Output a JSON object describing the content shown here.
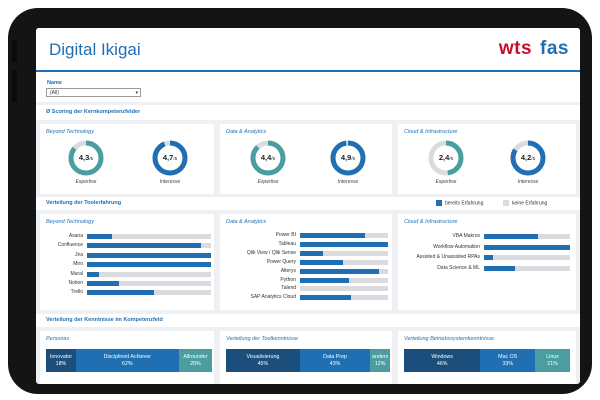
{
  "app": {
    "title": "Digital Ikigai"
  },
  "logo": {
    "part1": "wts",
    "part2": "fas"
  },
  "filter": {
    "label": "Name",
    "value": "(All)"
  },
  "sections": {
    "scoring": "Ø Scoring der Kernkompetenzfelder",
    "tools": "Verteilung der Toolerfahrung",
    "knowledge": "Verteilung der Kenntnisse im Kompetenzfeld"
  },
  "legend": {
    "has": "bereits Erfahrung",
    "none": "keine Erfahrung"
  },
  "colors": {
    "accent": "#1f6fb2",
    "teal": "#4a9ea1",
    "dark_navy": "#1b4e7a",
    "bar_bg": "#d9dbde",
    "logo_red": "#c8102e"
  },
  "scoring": [
    {
      "title": "Beyond Technology",
      "expertise": {
        "value": "4,3",
        "label": "Expertise",
        "fraction": 0.86
      },
      "interest": {
        "value": "4,7",
        "label": "Interesse",
        "fraction": 0.94
      }
    },
    {
      "title": "Data & Analytics",
      "expertise": {
        "value": "4,4",
        "label": "Expertise",
        "fraction": 0.88
      },
      "interest": {
        "value": "4,9",
        "label": "Interesse",
        "fraction": 0.98
      }
    },
    {
      "title": "Cloud & Infrastructure",
      "expertise": {
        "value": "2,4",
        "label": "Expertise",
        "fraction": 0.48
      },
      "interest": {
        "value": "4,2",
        "label": "Interesse",
        "fraction": 0.84
      }
    }
  ],
  "score_max": "/5",
  "tools": [
    {
      "title": "Beyond Technology",
      "items": [
        {
          "label": "Asana",
          "value": 0.2
        },
        {
          "label": "Confluence",
          "value": 0.92
        },
        {
          "label": "Jira",
          "value": 1.0
        },
        {
          "label": "Miro",
          "value": 1.0
        },
        {
          "label": "Mural",
          "value": 0.1
        },
        {
          "label": "Notion",
          "value": 0.26
        },
        {
          "label": "Trello",
          "value": 0.54
        }
      ]
    },
    {
      "title": "Data & Analytics",
      "items": [
        {
          "label": "Power BI",
          "value": 0.74
        },
        {
          "label": "Tableau",
          "value": 1.0
        },
        {
          "label": "Qlik View / Qlik Sense",
          "value": 0.26
        },
        {
          "label": "Power Query",
          "value": 0.49
        },
        {
          "label": "Alteryx",
          "value": 0.9
        },
        {
          "label": "Python",
          "value": 0.56
        },
        {
          "label": "Talend",
          "value": 0.0
        },
        {
          "label": "SAP Analytics Cloud",
          "value": 0.58
        }
      ]
    },
    {
      "title": "Cloud & Infrastructure",
      "items": [
        {
          "label": "VBA Makros",
          "value": 0.63
        },
        {
          "label": "Workflow Automation",
          "value": 1.0
        },
        {
          "label": "Assisted & Unassisted RPAs",
          "value": 0.1
        },
        {
          "label": "Data Science & ML",
          "value": 0.36
        }
      ]
    }
  ],
  "knowledge": [
    {
      "title": "Personas",
      "segments": [
        {
          "label": "Innovator",
          "pct": "18%",
          "share": 0.18,
          "color": "#1b4e7a"
        },
        {
          "label": "Disciplined Achiever",
          "pct": "62%",
          "share": 0.62,
          "color": "#1f6fb2"
        },
        {
          "label": "Allrounder",
          "pct": "20%",
          "share": 0.2,
          "color": "#4a9ea1"
        }
      ]
    },
    {
      "title": "Verteilung der Toolkenntnisse",
      "segments": [
        {
          "label": "Visualisierung",
          "pct": "45%",
          "share": 0.45,
          "color": "#1b4e7a"
        },
        {
          "label": "Data Prep",
          "pct": "43%",
          "share": 0.43,
          "color": "#1f6fb2"
        },
        {
          "label": "anders",
          "pct": "12%",
          "share": 0.12,
          "color": "#4a9ea1"
        }
      ]
    },
    {
      "title": "Verteilung Betriebssystemkenntnisse",
      "segments": [
        {
          "label": "Windows",
          "pct": "46%",
          "share": 0.46,
          "color": "#1b4e7a"
        },
        {
          "label": "Mac OS",
          "pct": "33%",
          "share": 0.33,
          "color": "#1f6fb2"
        },
        {
          "label": "Linux",
          "pct": "21%",
          "share": 0.21,
          "color": "#4a9ea1"
        }
      ]
    }
  ]
}
